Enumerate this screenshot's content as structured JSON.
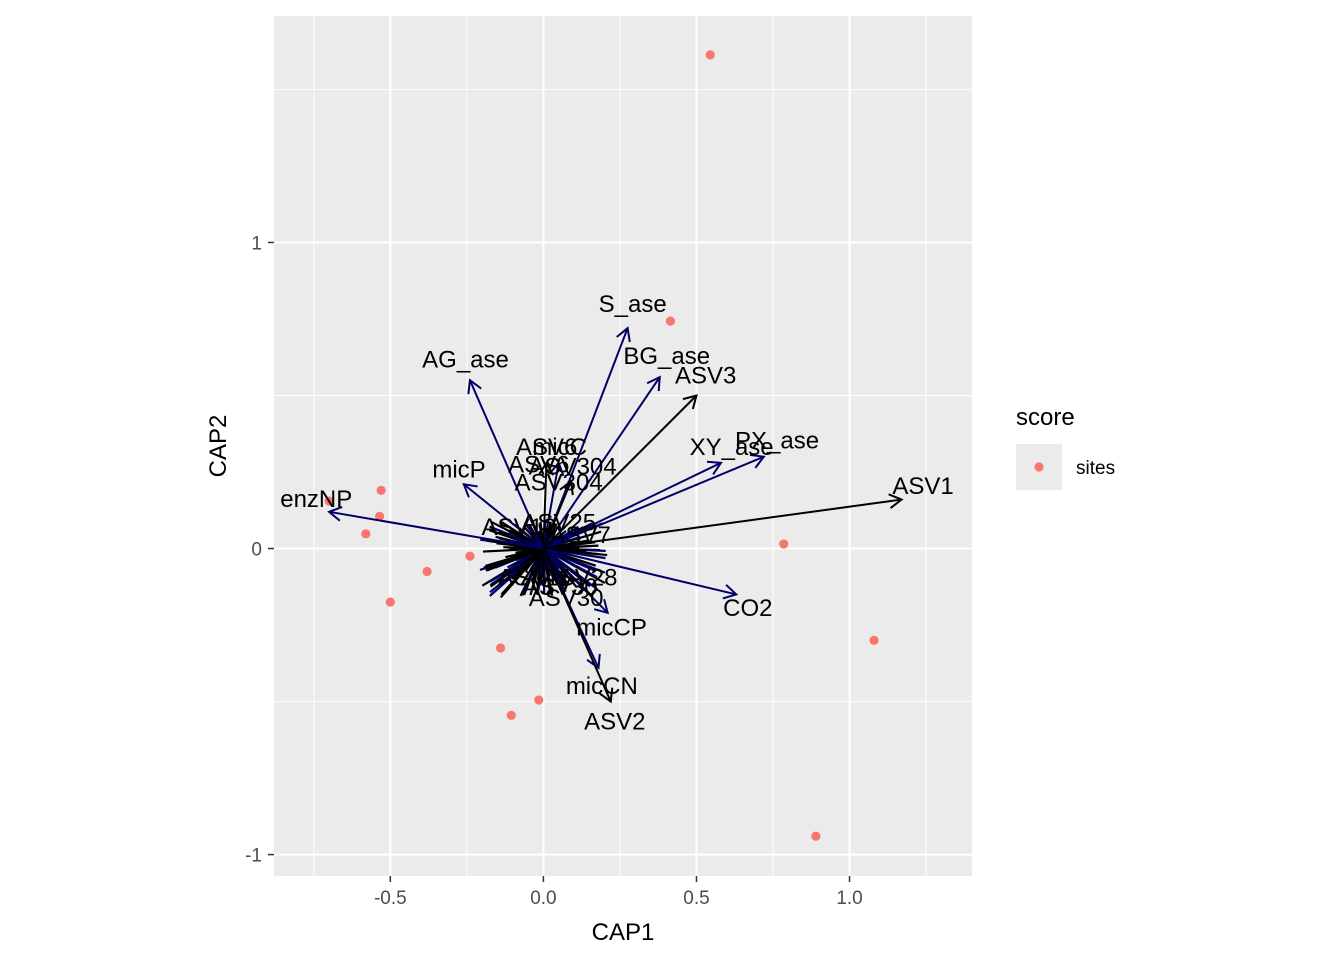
{
  "chart_data": {
    "type": "scatter",
    "title": "",
    "xlabel": "CAP1",
    "ylabel": "CAP2",
    "xlim": [
      -0.88,
      1.4
    ],
    "ylim": [
      -1.07,
      1.74
    ],
    "x_ticks": [
      -0.5,
      0.0,
      0.5,
      1.0
    ],
    "x_tick_labels": [
      "-0.5",
      "0.0",
      "0.5",
      "1.0"
    ],
    "y_ticks": [
      -1,
      0,
      1
    ],
    "y_tick_labels": [
      "-1",
      "0",
      "1"
    ],
    "grid": true,
    "legend": {
      "title": "score",
      "placement": "right",
      "entries": [
        {
          "label": "sites",
          "color": "#f8766d"
        }
      ]
    },
    "colors": {
      "panel": "#ebebeb",
      "grid": "#ffffff",
      "sites": "#f8766d",
      "env_arrows": "#000066",
      "species_arrows": "#000000"
    },
    "sites": [
      {
        "x": 0.545,
        "y": 1.613
      },
      {
        "x": 0.415,
        "y": 0.743
      },
      {
        "x": -0.7,
        "y": 0.155
      },
      {
        "x": -0.53,
        "y": 0.19
      },
      {
        "x": -0.535,
        "y": 0.105
      },
      {
        "x": -0.58,
        "y": 0.048
      },
      {
        "x": -0.24,
        "y": -0.025
      },
      {
        "x": -0.38,
        "y": -0.075
      },
      {
        "x": -0.5,
        "y": -0.175
      },
      {
        "x": 0.785,
        "y": 0.015
      },
      {
        "x": -0.14,
        "y": -0.325
      },
      {
        "x": -0.015,
        "y": -0.495
      },
      {
        "x": -0.105,
        "y": -0.545
      },
      {
        "x": 1.08,
        "y": -0.3
      },
      {
        "x": 0.89,
        "y": -0.94
      }
    ],
    "env_vectors": [
      {
        "label": "S_ase",
        "x": 0.275,
        "y": 0.72
      },
      {
        "label": "AG_ase",
        "x": -0.24,
        "y": 0.55
      },
      {
        "label": "BG_ase",
        "x": 0.38,
        "y": 0.56
      },
      {
        "label": "micC",
        "x": 0.05,
        "y": 0.28
      },
      {
        "label": "micP",
        "x": -0.26,
        "y": 0.21
      },
      {
        "label": "XY_ase",
        "x": 0.58,
        "y": 0.28
      },
      {
        "label": "PX_ase",
        "x": 0.72,
        "y": 0.3
      },
      {
        "label": "enzNP",
        "x": -0.7,
        "y": 0.12
      },
      {
        "label": "CO2",
        "x": 0.63,
        "y": -0.15
      },
      {
        "label": "micCP",
        "x": 0.21,
        "y": -0.21
      },
      {
        "label": "micCN",
        "x": 0.18,
        "y": -0.39
      }
    ],
    "species_vectors": [
      {
        "label": "ASV1",
        "x": 1.17,
        "y": 0.16
      },
      {
        "label": "ASV3",
        "x": 0.5,
        "y": 0.5
      },
      {
        "label": "ASV2",
        "x": 0.22,
        "y": -0.5
      },
      {
        "label": "ASV304",
        "x": 0.09,
        "y": 0.22
      },
      {
        "label": "ASV6",
        "x": 0.01,
        "y": 0.28
      },
      {
        "label": "ASV30",
        "x": 0.07,
        "y": -0.12
      }
    ],
    "cluster_labels": [
      {
        "text": "ASV6",
        "x": -0.015,
        "y": 0.275
      },
      {
        "text": "ASV304",
        "x": 0.05,
        "y": 0.215
      },
      {
        "text": "ASV30",
        "x": 0.055,
        "y": -0.125
      },
      {
        "text": "ASV25",
        "x": 0.05,
        "y": 0.085
      },
      {
        "text": "ASV10",
        "x": -0.08,
        "y": 0.07
      },
      {
        "text": "ASV7",
        "x": 0.12,
        "y": 0.045
      },
      {
        "text": "ASV28",
        "x": 0.12,
        "y": -0.095
      },
      {
        "text": "ASV11",
        "x": -0.03,
        "y": -0.095
      }
    ]
  }
}
